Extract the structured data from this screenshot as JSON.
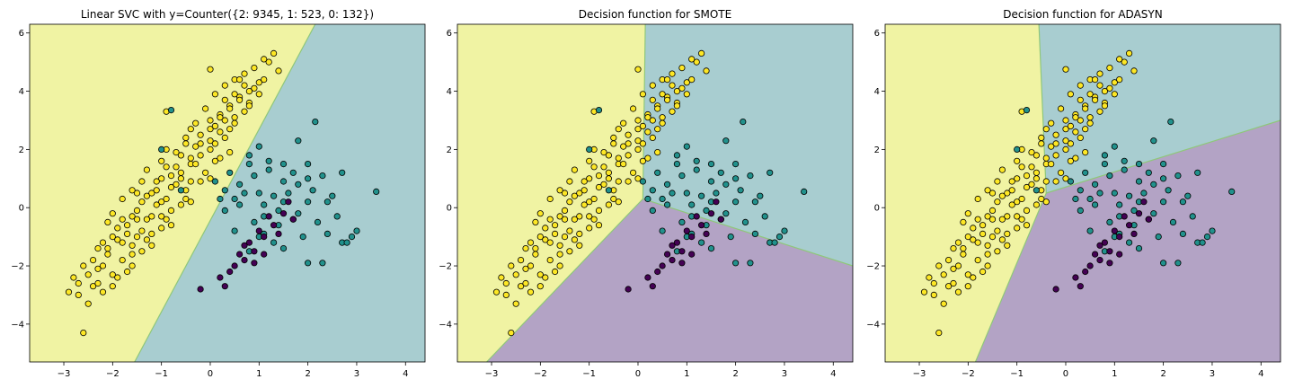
{
  "chart_data": [
    {
      "type": "scatter",
      "title": "Linear SVC with y=Counter({2: 9345, 1: 523, 0: 132})",
      "xlabel": "",
      "ylabel": "",
      "xlim": [
        -3.7,
        4.4
      ],
      "ylim": [
        -5.3,
        6.3
      ],
      "xticks": [
        -3,
        -2,
        -1,
        0,
        1,
        2,
        3,
        4
      ],
      "yticks": [
        -4,
        -2,
        0,
        2,
        4,
        6
      ],
      "grid": false,
      "background_regions": [
        {
          "class": 2,
          "color": "#f0f3a3",
          "polygon": [
            [
              -3.7,
              -5.3
            ],
            [
              -3.7,
              6.3
            ],
            [
              2.15,
              6.3
            ],
            [
              -1.55,
              -5.3
            ]
          ]
        },
        {
          "class": 1,
          "color": "#a8cdd0",
          "polygon": [
            [
              -1.55,
              -5.3
            ],
            [
              2.15,
              6.3
            ],
            [
              4.4,
              6.3
            ],
            [
              4.4,
              -5.3
            ]
          ]
        }
      ],
      "boundaries": [
        {
          "from": [
            -1.55,
            -5.3
          ],
          "to": [
            2.15,
            6.3
          ]
        }
      ]
    },
    {
      "type": "scatter",
      "title": "Decision function for SMOTE",
      "xlabel": "",
      "ylabel": "",
      "xlim": [
        -3.7,
        4.4
      ],
      "ylim": [
        -5.3,
        6.3
      ],
      "xticks": [
        -3,
        -2,
        -1,
        0,
        1,
        2,
        3,
        4
      ],
      "yticks": [
        -4,
        -2,
        0,
        2,
        4,
        6
      ],
      "grid": false,
      "background_regions": [
        {
          "class": 2,
          "color": "#f0f3a3",
          "polygon": [
            [
              -3.7,
              -5.3
            ],
            [
              -3.7,
              6.3
            ],
            [
              0.15,
              6.3
            ],
            [
              0.1,
              0.3
            ],
            [
              -3.1,
              -5.3
            ]
          ]
        },
        {
          "class": 1,
          "color": "#a8cdd0",
          "polygon": [
            [
              0.15,
              6.3
            ],
            [
              4.4,
              6.3
            ],
            [
              4.4,
              -2.0
            ],
            [
              0.1,
              0.3
            ]
          ]
        },
        {
          "class": 0,
          "color": "#b3a3c5",
          "polygon": [
            [
              -3.1,
              -5.3
            ],
            [
              0.1,
              0.3
            ],
            [
              4.4,
              -2.0
            ],
            [
              4.4,
              -5.3
            ]
          ]
        }
      ],
      "boundaries": [
        {
          "from": [
            0.15,
            6.3
          ],
          "to": [
            0.1,
            0.3
          ]
        },
        {
          "from": [
            0.1,
            0.3
          ],
          "to": [
            -3.1,
            -5.3
          ]
        },
        {
          "from": [
            0.1,
            0.3
          ],
          "to": [
            4.4,
            -2.0
          ]
        }
      ]
    },
    {
      "type": "scatter",
      "title": "Decision function for ADASYN",
      "xlabel": "",
      "ylabel": "",
      "xlim": [
        -3.7,
        4.4
      ],
      "ylim": [
        -5.3,
        6.3
      ],
      "xticks": [
        -3,
        -2,
        -1,
        0,
        1,
        2,
        3,
        4
      ],
      "yticks": [
        -4,
        -2,
        0,
        2,
        4,
        6
      ],
      "grid": false,
      "background_regions": [
        {
          "class": 2,
          "color": "#f0f3a3",
          "polygon": [
            [
              -3.7,
              -5.3
            ],
            [
              -3.7,
              6.3
            ],
            [
              -0.55,
              6.3
            ],
            [
              -0.4,
              0.5
            ],
            [
              -1.85,
              -5.3
            ]
          ]
        },
        {
          "class": 1,
          "color": "#a8cdd0",
          "polygon": [
            [
              -0.55,
              6.3
            ],
            [
              4.4,
              6.3
            ],
            [
              4.4,
              3.0
            ],
            [
              -0.4,
              0.5
            ]
          ]
        },
        {
          "class": 0,
          "color": "#b3a3c5",
          "polygon": [
            [
              -1.85,
              -5.3
            ],
            [
              -0.4,
              0.5
            ],
            [
              4.4,
              3.0
            ],
            [
              4.4,
              -5.3
            ]
          ]
        }
      ],
      "boundaries": [
        {
          "from": [
            -0.55,
            6.3
          ],
          "to": [
            -0.4,
            0.5
          ]
        },
        {
          "from": [
            -0.4,
            0.5
          ],
          "to": [
            -1.85,
            -5.3
          ]
        },
        {
          "from": [
            -0.4,
            0.5
          ],
          "to": [
            4.4,
            3.0
          ]
        }
      ]
    }
  ],
  "points": {
    "classes": [
      {
        "class": 0,
        "color": "#440154"
      },
      {
        "class": 1,
        "color": "#21918c"
      },
      {
        "class": 2,
        "color": "#fde725"
      }
    ],
    "edge_color": "#000000",
    "class2": [
      [
        -2.6,
        -4.3
      ],
      [
        -2.9,
        -2.9
      ],
      [
        -2.8,
        -2.4
      ],
      [
        -2.7,
        -3.0
      ],
      [
        -2.5,
        -3.3
      ],
      [
        -2.4,
        -2.7
      ],
      [
        -2.3,
        -2.1
      ],
      [
        -2.2,
        -2.9
      ],
      [
        -2.1,
        -1.6
      ],
      [
        -2.0,
        -2.3
      ],
      [
        -1.9,
        -1.1
      ],
      [
        -1.8,
        -1.8
      ],
      [
        -1.7,
        -0.6
      ],
      [
        -1.6,
        -1.3
      ],
      [
        -1.5,
        -0.1
      ],
      [
        -1.4,
        -0.8
      ],
      [
        -1.3,
        0.4
      ],
      [
        -1.2,
        -0.3
      ],
      [
        -1.1,
        0.9
      ],
      [
        -1.0,
        0.2
      ],
      [
        -0.9,
        1.4
      ],
      [
        -0.8,
        0.7
      ],
      [
        -0.7,
        1.9
      ],
      [
        -0.6,
        1.2
      ],
      [
        -0.5,
        2.4
      ],
      [
        -0.4,
        1.7
      ],
      [
        -0.3,
        2.9
      ],
      [
        -0.2,
        2.2
      ],
      [
        -0.1,
        3.4
      ],
      [
        0.0,
        2.7
      ],
      [
        0.1,
        3.9
      ],
      [
        0.2,
        3.2
      ],
      [
        0.3,
        4.2
      ],
      [
        0.4,
        3.5
      ],
      [
        0.5,
        4.4
      ],
      [
        0.6,
        3.8
      ],
      [
        0.7,
        4.6
      ],
      [
        0.8,
        4.0
      ],
      [
        0.9,
        4.8
      ],
      [
        1.0,
        4.3
      ],
      [
        1.2,
        5.0
      ],
      [
        1.3,
        5.3
      ],
      [
        1.1,
        5.1
      ],
      [
        1.4,
        4.7
      ],
      [
        0.0,
        4.75
      ],
      [
        -0.9,
        3.3
      ],
      [
        -2.2,
        -2.0
      ],
      [
        -1.5,
        -1.0
      ],
      [
        -1.0,
        -0.3
      ],
      [
        -0.5,
        0.6
      ],
      [
        0.1,
        1.6
      ],
      [
        0.3,
        2.4
      ],
      [
        -1.9,
        -2.4
      ],
      [
        -1.6,
        -1.6
      ],
      [
        -1.2,
        -0.9
      ],
      [
        -0.8,
        -0.1
      ],
      [
        -0.4,
        0.9
      ],
      [
        0.0,
        2.0
      ],
      [
        0.4,
        2.7
      ],
      [
        0.7,
        3.3
      ],
      [
        -2.3,
        -2.6
      ],
      [
        -1.8,
        -1.2
      ],
      [
        -1.3,
        -0.4
      ],
      [
        -0.9,
        0.3
      ],
      [
        -0.6,
        1.0
      ],
      [
        -0.2,
        1.8
      ],
      [
        0.2,
        2.6
      ],
      [
        0.5,
        3.1
      ],
      [
        0.8,
        3.6
      ],
      [
        1.0,
        3.9
      ],
      [
        -2.4,
        -1.8
      ],
      [
        -2.0,
        -1.0
      ],
      [
        -1.6,
        -0.3
      ],
      [
        -1.2,
        0.5
      ],
      [
        -0.8,
        1.1
      ],
      [
        -0.4,
        1.5
      ],
      [
        0.0,
        2.3
      ],
      [
        0.3,
        3.0
      ],
      [
        0.6,
        3.7
      ],
      [
        0.9,
        4.1
      ],
      [
        -2.5,
        -2.3
      ],
      [
        -2.1,
        -1.4
      ],
      [
        -1.7,
        -0.9
      ],
      [
        -1.4,
        0.2
      ],
      [
        -1.1,
        0.6
      ],
      [
        -0.7,
        1.4
      ],
      [
        -0.3,
        2.1
      ],
      [
        0.1,
        2.8
      ],
      [
        0.4,
        3.4
      ],
      [
        0.7,
        4.2
      ],
      [
        -2.7,
        -2.6
      ],
      [
        -2.2,
        -1.2
      ],
      [
        -1.8,
        -0.4
      ],
      [
        -1.5,
        0.5
      ],
      [
        -1.0,
        1.0
      ],
      [
        -0.6,
        1.8
      ],
      [
        -0.2,
        2.5
      ],
      [
        0.2,
        3.1
      ],
      [
        0.5,
        3.9
      ],
      [
        1.1,
        4.4
      ],
      [
        -1.4,
        -1.5
      ],
      [
        -1.0,
        -0.7
      ],
      [
        -0.6,
        0.1
      ],
      [
        -0.2,
        0.9
      ],
      [
        0.2,
        1.7
      ],
      [
        -1.7,
        -2.2
      ],
      [
        -1.3,
        -1.1
      ],
      [
        -0.9,
        -0.4
      ],
      [
        -0.5,
        0.3
      ],
      [
        -0.1,
        1.2
      ],
      [
        -2.6,
        -2.0
      ],
      [
        -2.3,
        -1.4
      ],
      [
        -1.9,
        -0.7
      ],
      [
        -1.5,
        -0.4
      ],
      [
        -1.1,
        0.1
      ],
      [
        -0.7,
        0.8
      ],
      [
        -0.3,
        1.5
      ],
      [
        0.1,
        2.2
      ],
      [
        0.5,
        2.9
      ],
      [
        0.8,
        3.5
      ],
      [
        -2.0,
        -2.7
      ],
      [
        -1.6,
        -2.0
      ],
      [
        -1.2,
        -1.3
      ],
      [
        -0.8,
        -0.6
      ],
      [
        -0.4,
        0.2
      ],
      [
        0.0,
        1.0
      ],
      [
        0.4,
        1.9
      ],
      [
        -1.0,
        1.6
      ],
      [
        -0.5,
        2.2
      ],
      [
        0.0,
        3.0
      ],
      [
        -1.4,
        0.9
      ],
      [
        -1.8,
        0.3
      ],
      [
        -2.1,
        -0.5
      ],
      [
        -0.9,
        2.0
      ],
      [
        -0.4,
        2.7
      ],
      [
        0.3,
        3.7
      ],
      [
        0.6,
        4.4
      ],
      [
        -1.3,
        1.3
      ],
      [
        -1.6,
        0.6
      ],
      [
        -2.0,
        -0.2
      ]
    ],
    "class1": [
      [
        -0.8,
        3.35
      ],
      [
        -1.0,
        2.0
      ],
      [
        -0.6,
        0.6
      ],
      [
        0.5,
        0.3
      ],
      [
        1.0,
        0.5
      ],
      [
        1.5,
        0.2
      ],
      [
        2.0,
        1.0
      ],
      [
        2.5,
        0.4
      ],
      [
        3.0,
        -0.8
      ],
      [
        3.4,
        0.55
      ],
      [
        2.7,
        -1.2
      ],
      [
        2.0,
        -1.9
      ],
      [
        2.3,
        -1.9
      ],
      [
        1.8,
        2.3
      ],
      [
        2.15,
        2.95
      ],
      [
        1.2,
        1.3
      ],
      [
        0.8,
        1.5
      ],
      [
        1.5,
        1.5
      ],
      [
        2.0,
        0.2
      ],
      [
        0.3,
        -0.1
      ],
      [
        0.6,
        0.1
      ],
      [
        1.1,
        -0.3
      ],
      [
        1.4,
        -0.6
      ],
      [
        1.7,
        -0.4
      ],
      [
        2.2,
        -0.5
      ],
      [
        2.6,
        -0.3
      ],
      [
        1.9,
        -1.0
      ],
      [
        1.3,
        -1.2
      ],
      [
        0.8,
        -1.5
      ],
      [
        1.5,
        -1.4
      ],
      [
        1.0,
        2.1
      ],
      [
        1.5,
        0.9
      ],
      [
        0.8,
        1.8
      ],
      [
        0.1,
        0.9
      ],
      [
        0.4,
        1.2
      ],
      [
        0.6,
        0.8
      ],
      [
        1.8,
        0.8
      ],
      [
        2.3,
        1.1
      ],
      [
        2.7,
        1.2
      ],
      [
        2.8,
        -1.2
      ],
      [
        1.1,
        0.1
      ],
      [
        1.6,
        0.5
      ],
      [
        0.9,
        -0.5
      ],
      [
        1.3,
        0.4
      ],
      [
        0.7,
        0.5
      ],
      [
        2.4,
        0.2
      ],
      [
        1.2,
        1.6
      ],
      [
        0.3,
        0.6
      ],
      [
        1.8,
        -0.2
      ],
      [
        2.9,
        -1.0
      ],
      [
        0.5,
        -0.8
      ],
      [
        1.0,
        -1.0
      ],
      [
        2.1,
        0.6
      ],
      [
        2.4,
        -0.9
      ],
      [
        1.7,
        1.2
      ],
      [
        0.2,
        0.3
      ],
      [
        0.9,
        1.1
      ],
      [
        1.4,
        -0.1
      ],
      [
        1.1,
        -0.9
      ],
      [
        2.0,
        1.5
      ]
    ],
    "class0": [
      [
        0.3,
        -2.7
      ],
      [
        0.2,
        -2.4
      ],
      [
        -0.2,
        -2.8
      ],
      [
        0.5,
        -2.0
      ],
      [
        0.7,
        -1.8
      ],
      [
        0.9,
        -1.5
      ],
      [
        1.1,
        -1.0
      ],
      [
        1.3,
        -0.6
      ],
      [
        1.5,
        -0.2
      ],
      [
        1.7,
        -0.4
      ],
      [
        0.8,
        -1.2
      ],
      [
        1.0,
        -0.8
      ],
      [
        0.6,
        -1.6
      ],
      [
        1.2,
        -0.3
      ],
      [
        0.4,
        -2.2
      ],
      [
        0.9,
        -1.9
      ],
      [
        1.4,
        -0.9
      ],
      [
        1.6,
        0.2
      ],
      [
        0.7,
        -1.3
      ],
      [
        1.1,
        -1.6
      ]
    ]
  }
}
